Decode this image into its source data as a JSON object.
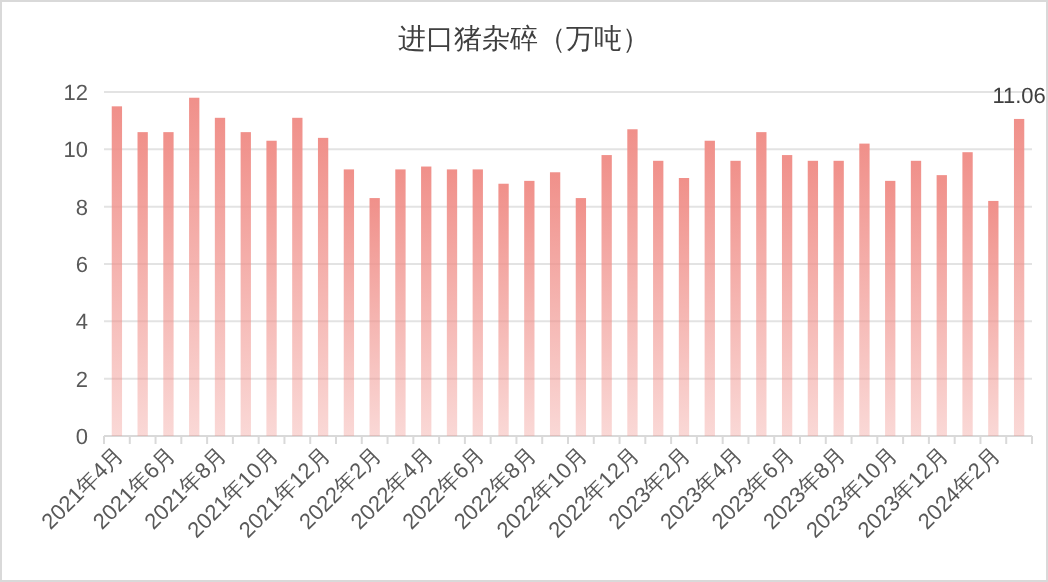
{
  "chart_data": {
    "type": "bar",
    "title": "进口猪杂碎（万吨）",
    "categories": [
      "2021年4月",
      null,
      "2021年6月",
      null,
      "2021年8月",
      null,
      "2021年10月",
      null,
      "2021年12月",
      null,
      "2022年2月",
      null,
      "2022年4月",
      null,
      "2022年6月",
      null,
      "2022年8月",
      null,
      "2022年10月",
      null,
      "2022年12月",
      null,
      "2023年2月",
      null,
      "2023年4月",
      null,
      "2023年6月",
      null,
      "2023年8月",
      null,
      "2023年10月",
      null,
      "2023年12月",
      null,
      "2024年2月",
      null
    ],
    "values": [
      11.5,
      10.6,
      10.6,
      11.8,
      11.1,
      10.6,
      10.3,
      11.1,
      10.4,
      9.3,
      8.3,
      9.3,
      9.4,
      9.3,
      9.3,
      8.8,
      8.9,
      9.2,
      8.3,
      9.8,
      10.7,
      9.6,
      9.0,
      10.3,
      9.6,
      10.6,
      9.8,
      9.6,
      9.6,
      10.2,
      8.9,
      9.6,
      9.1,
      9.9,
      8.2,
      11.06
    ],
    "value_labels": [
      null,
      null,
      null,
      null,
      null,
      null,
      null,
      null,
      null,
      null,
      null,
      null,
      null,
      null,
      null,
      null,
      null,
      null,
      null,
      null,
      null,
      null,
      null,
      null,
      null,
      null,
      null,
      null,
      null,
      null,
      null,
      null,
      null,
      null,
      null,
      "11.06"
    ],
    "color": "#f0908a",
    "ylim": [
      0,
      12
    ],
    "yticks": [
      0,
      2,
      4,
      6,
      8,
      10,
      12
    ],
    "grid": "y"
  }
}
